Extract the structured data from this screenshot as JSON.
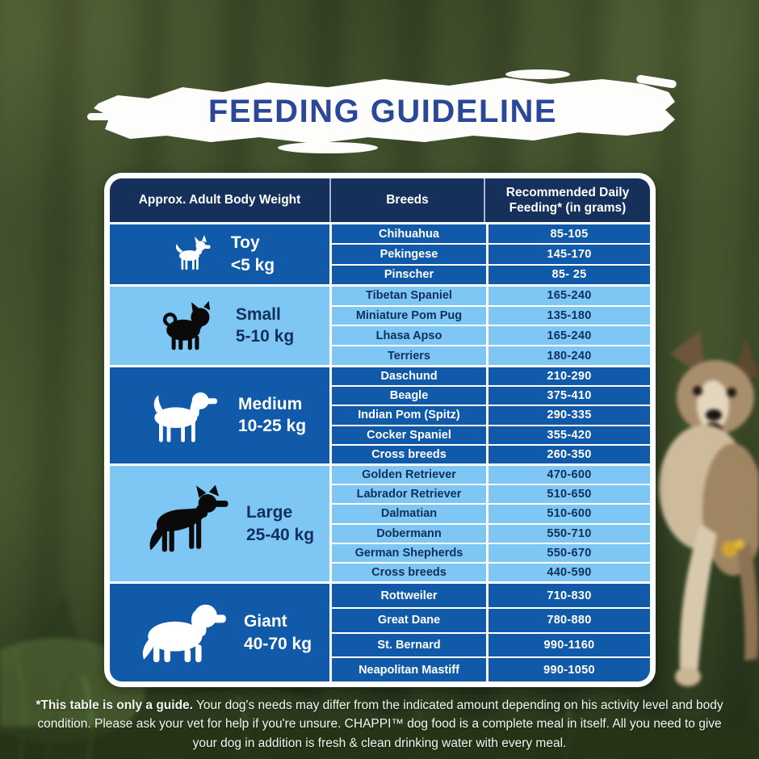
{
  "title": "FEEDING GUIDELINE",
  "colors": {
    "title_blue": "#2b4797",
    "header_navy": "#16305c",
    "row_dark_blue": "#1159a9",
    "row_light_blue": "#7ec6f3",
    "navy_text": "#12305e",
    "background_green": "#3c4a29"
  },
  "table": {
    "headers": [
      "Approx. Adult Body Weight",
      "Breeds",
      "Recommended Daily Feeding* (in grams)"
    ],
    "groups": [
      {
        "name": "Toy",
        "weight": "<5 kg",
        "icon": "chihuahua-icon",
        "shade": "dark",
        "rows": [
          [
            "Chihuahua",
            "85-105"
          ],
          [
            "Pekingese",
            "145-170"
          ],
          [
            "Pinscher",
            "85- 25"
          ]
        ]
      },
      {
        "name": "Small",
        "weight": "5-10 kg",
        "icon": "pug-icon",
        "shade": "light",
        "rows": [
          [
            "Tibetan Spaniel",
            "165-240"
          ],
          [
            "Miniature Pom Pug",
            "135-180"
          ],
          [
            "Lhasa Apso",
            "165-240"
          ],
          [
            "Terriers",
            "180-240"
          ]
        ]
      },
      {
        "name": "Medium",
        "weight": "10-25 kg",
        "icon": "beagle-icon",
        "shade": "dark",
        "rows": [
          [
            "Daschund",
            "210-290"
          ],
          [
            "Beagle",
            "375-410"
          ],
          [
            "Indian Pom (Spitz)",
            "290-335"
          ],
          [
            "Cocker Spaniel",
            "355-420"
          ],
          [
            "Cross breeds",
            "260-350"
          ]
        ]
      },
      {
        "name": "Large",
        "weight": "25-40 kg",
        "icon": "german-shepherd-icon",
        "shade": "light",
        "rows": [
          [
            "Golden Retriever",
            "470-600"
          ],
          [
            "Labrador Retriever",
            "510-650"
          ],
          [
            "Dalmatian",
            "510-600"
          ],
          [
            "Dobermann",
            "550-710"
          ],
          [
            "German Shepherds",
            "550-670"
          ],
          [
            "Cross breeds",
            "440-590"
          ]
        ]
      },
      {
        "name": "Giant",
        "weight": "40-70 kg",
        "icon": "st-bernard-icon",
        "shade": "dark",
        "rows": [
          [
            "Rottweiler",
            "710-830"
          ],
          [
            "Great Dane",
            "780-880"
          ],
          [
            "St. Bernard",
            "990-1160"
          ],
          [
            "Neapolitan Mastiff",
            "990-1050"
          ]
        ]
      }
    ]
  },
  "footnote": {
    "bold": "*This table is only a guide.",
    "text": " Your dog's needs may differ from the indicated amount depending on his activity level and body condition. Please ask your vet for help if you're unsure. CHAPPI™ dog food is a complete meal in itself. All you need to give your dog in addition is fresh & clean drinking water with every meal."
  }
}
